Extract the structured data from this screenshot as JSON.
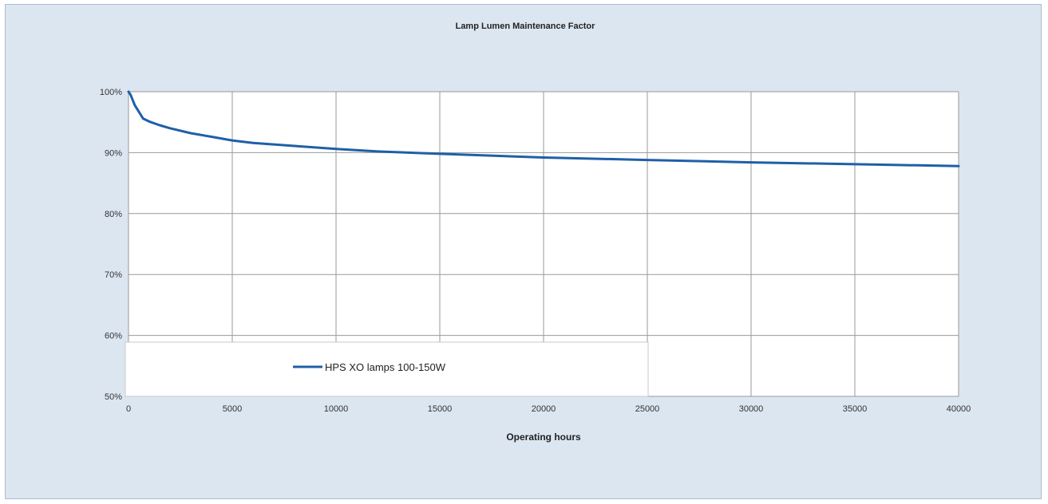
{
  "chart_data": {
    "type": "line",
    "title": "Lamp Lumen Maintenance Factor",
    "xlabel": "Operating hours",
    "ylabel": "",
    "xlim": [
      0,
      40000
    ],
    "ylim": [
      50,
      100
    ],
    "x_ticks": [
      "0",
      "5000",
      "10000",
      "15000",
      "20000",
      "25000",
      "30000",
      "35000",
      "40000"
    ],
    "y_ticks": [
      "50%",
      "60%",
      "70%",
      "80%",
      "90%",
      "100%"
    ],
    "grid": true,
    "legend_position": "bottom-left",
    "series": [
      {
        "name": "HPS XO lamps 100-150W",
        "color": "#1f5fa8",
        "x": [
          0,
          100,
          300,
          700,
          1000,
          1500,
          2000,
          3000,
          4000,
          5000,
          6000,
          8000,
          10000,
          12000,
          15000,
          20000,
          25000,
          30000,
          35000,
          40000
        ],
        "y": [
          100,
          99.5,
          97.8,
          95.6,
          95.1,
          94.5,
          94.0,
          93.2,
          92.6,
          92.0,
          91.6,
          91.1,
          90.6,
          90.2,
          89.8,
          89.2,
          88.8,
          88.4,
          88.1,
          87.8
        ]
      }
    ]
  }
}
